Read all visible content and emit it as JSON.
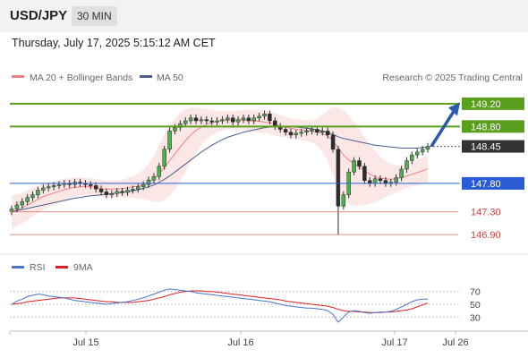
{
  "header": {
    "symbol": "USD/JPY",
    "timeframe": "30 MIN"
  },
  "timestamp": "Thursday, July 17, 2025 5:15:12 AM CET",
  "legend": {
    "ma20": "MA 20 + Bollinger Bands",
    "ma50": "MA 50",
    "ma20_color": "#f08080",
    "ma50_color": "#4a5f8f"
  },
  "watermark": "Research © 2025 Trading Central",
  "chart_data": {
    "type": "candlestick",
    "price_axis": {
      "min": 146.65,
      "max": 149.45
    },
    "x_ticks": [
      "Jul 15",
      "Jul 16",
      "Jul 17",
      "Jul 26"
    ],
    "levels": [
      {
        "value": 149.2,
        "label": "149.20",
        "kind": "resistance",
        "color": "#5aa01e"
      },
      {
        "value": 148.8,
        "label": "148.80",
        "kind": "resistance",
        "color": "#5aa01e"
      },
      {
        "value": 148.45,
        "label": "148.45",
        "kind": "last",
        "color": "#333333"
      },
      {
        "value": 147.8,
        "label": "147.80",
        "kind": "pivot",
        "color": "#2a5bd7"
      },
      {
        "value": 147.3,
        "label": "147.30",
        "kind": "support",
        "color": "#e06060"
      },
      {
        "value": 146.9,
        "label": "146.90",
        "kind": "support",
        "color": "#e06060"
      }
    ],
    "closes": [
      147.35,
      147.42,
      147.48,
      147.55,
      147.6,
      147.68,
      147.72,
      147.74,
      147.76,
      147.78,
      147.8,
      147.78,
      147.82,
      147.8,
      147.78,
      147.76,
      147.7,
      147.65,
      147.6,
      147.62,
      147.66,
      147.64,
      147.68,
      147.7,
      147.74,
      147.78,
      147.86,
      147.92,
      148.1,
      148.4,
      148.72,
      148.78,
      148.85,
      148.9,
      148.95,
      148.9,
      148.92,
      148.9,
      148.88,
      148.9,
      148.92,
      148.95,
      148.88,
      148.92,
      148.95,
      148.9,
      148.95,
      148.98,
      149.02,
      148.9,
      148.8,
      148.75,
      148.7,
      148.65,
      148.68,
      148.7,
      148.72,
      148.75,
      148.7,
      148.72,
      148.65,
      148.4,
      147.4,
      147.6,
      148.0,
      148.2,
      148.1,
      147.85,
      147.8,
      147.88,
      147.85,
      147.8,
      147.82,
      147.9,
      148.05,
      148.2,
      148.3,
      148.35,
      148.4,
      148.45
    ],
    "ma20": [
      147.3,
      147.33,
      147.37,
      147.42,
      147.47,
      147.52,
      147.57,
      147.6,
      147.63,
      147.66,
      147.69,
      147.71,
      147.73,
      147.74,
      147.75,
      147.74,
      147.73,
      147.71,
      147.7,
      147.7,
      147.7,
      147.71,
      147.72,
      147.74,
      147.75,
      147.78,
      147.82,
      147.88,
      147.97,
      148.08,
      148.2,
      148.32,
      148.44,
      148.55,
      148.65,
      148.73,
      148.79,
      148.84,
      148.87,
      148.89,
      148.9,
      148.91,
      148.91,
      148.91,
      148.91,
      148.91,
      148.9,
      148.89,
      148.88,
      148.86,
      148.84,
      148.81,
      148.79,
      148.77,
      148.75,
      148.74,
      148.73,
      148.72,
      148.7,
      148.68,
      148.63,
      148.55,
      148.42,
      148.3,
      148.21,
      148.15,
      148.09,
      148.02,
      147.96,
      147.92,
      147.89,
      147.88,
      147.87,
      147.88,
      147.9,
      147.93,
      147.96,
      147.99,
      148.02,
      148.06
    ],
    "ma50": [
      147.3,
      147.32,
      147.34,
      147.36,
      147.38,
      147.4,
      147.42,
      147.44,
      147.46,
      147.48,
      147.5,
      147.52,
      147.54,
      147.55,
      147.57,
      147.58,
      147.59,
      147.6,
      147.61,
      147.62,
      147.63,
      147.64,
      147.65,
      147.67,
      147.69,
      147.71,
      147.74,
      147.77,
      147.82,
      147.87,
      147.93,
      148.0,
      148.07,
      148.14,
      148.21,
      148.28,
      148.35,
      148.41,
      148.47,
      148.52,
      148.57,
      148.61,
      148.64,
      148.67,
      148.7,
      148.72,
      148.74,
      148.76,
      148.78,
      148.79,
      148.8,
      148.8,
      148.8,
      148.8,
      148.79,
      148.78,
      148.77,
      148.76,
      148.74,
      148.72,
      148.69,
      148.66,
      148.62,
      148.59,
      148.57,
      148.55,
      148.53,
      148.51,
      148.49,
      148.47,
      148.46,
      148.45,
      148.44,
      148.43,
      148.42,
      148.42,
      148.42,
      148.42,
      148.43,
      148.44
    ],
    "bollinger_halfwidth": [
      0.3,
      0.28,
      0.27,
      0.26,
      0.25,
      0.24,
      0.23,
      0.22,
      0.21,
      0.2,
      0.19,
      0.18,
      0.17,
      0.16,
      0.15,
      0.15,
      0.15,
      0.15,
      0.15,
      0.15,
      0.15,
      0.16,
      0.17,
      0.19,
      0.22,
      0.26,
      0.32,
      0.4,
      0.5,
      0.58,
      0.62,
      0.63,
      0.6,
      0.55,
      0.48,
      0.4,
      0.33,
      0.27,
      0.22,
      0.19,
      0.17,
      0.16,
      0.16,
      0.17,
      0.18,
      0.19,
      0.2,
      0.2,
      0.2,
      0.2,
      0.2,
      0.19,
      0.18,
      0.18,
      0.18,
      0.18,
      0.18,
      0.2,
      0.24,
      0.32,
      0.45,
      0.6,
      0.72,
      0.78,
      0.78,
      0.74,
      0.68,
      0.6,
      0.52,
      0.45,
      0.38,
      0.32,
      0.27,
      0.24,
      0.22,
      0.21,
      0.21,
      0.22,
      0.23,
      0.25
    ],
    "rsi": {
      "label": "RSI",
      "ma_label": "9MA",
      "color": "#4a74c9",
      "ma_color": "#e02020",
      "ticks": [
        70,
        50,
        30
      ],
      "range": [
        15,
        85
      ],
      "values": [
        50,
        55,
        58,
        62,
        64,
        66,
        65,
        63,
        62,
        61,
        60,
        58,
        56,
        55,
        54,
        53,
        52,
        51,
        50,
        51,
        52,
        53,
        54,
        56,
        58,
        60,
        63,
        66,
        69,
        72,
        74,
        73,
        72,
        71,
        70,
        68,
        67,
        66,
        65,
        64,
        63,
        62,
        61,
        60,
        59,
        58,
        57,
        56,
        55,
        54,
        52,
        50,
        48,
        47,
        46,
        45,
        44,
        44,
        43,
        42,
        40,
        34,
        22,
        30,
        38,
        40,
        39,
        37,
        36,
        37,
        38,
        38,
        39,
        42,
        46,
        50,
        54,
        57,
        58,
        58
      ],
      "ma": [
        50,
        51,
        52,
        54,
        55,
        56,
        57,
        58,
        59,
        60,
        60,
        60,
        60,
        59,
        58,
        57,
        56,
        55,
        54,
        54,
        53,
        53,
        53,
        53,
        54,
        55,
        56,
        58,
        60,
        62,
        65,
        67,
        69,
        70,
        71,
        71,
        71,
        70,
        70,
        69,
        68,
        67,
        66,
        65,
        64,
        63,
        62,
        61,
        60,
        59,
        58,
        57,
        55,
        54,
        53,
        52,
        51,
        50,
        49,
        48,
        47,
        45,
        42,
        40,
        39,
        39,
        38,
        38,
        37,
        37,
        37,
        38,
        38,
        39,
        40,
        41,
        43,
        46,
        49,
        52
      ]
    }
  }
}
